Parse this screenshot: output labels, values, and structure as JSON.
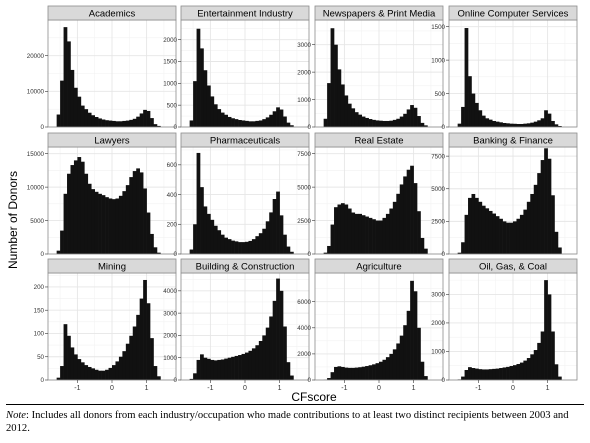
{
  "chart_data": {
    "type": "histogram-facets",
    "ylabel": "Number of Donors",
    "xlabel": "CFscore",
    "x_ticks": [
      "-1",
      "0",
      "1"
    ],
    "xlim": [
      -1.85,
      1.85
    ],
    "bins_x": [
      -1.65,
      -1.55,
      -1.45,
      -1.35,
      -1.25,
      -1.15,
      -1.05,
      -0.95,
      -0.85,
      -0.75,
      -0.65,
      -0.55,
      -0.45,
      -0.35,
      -0.25,
      -0.15,
      -0.05,
      0.05,
      0.15,
      0.25,
      0.35,
      0.45,
      0.55,
      0.65,
      0.75,
      0.85,
      0.95,
      1.05,
      1.15,
      1.25,
      1.35,
      1.45,
      1.55,
      1.65
    ],
    "bin_width": 0.1,
    "grid": true,
    "panels": [
      {
        "title": "Academics",
        "ylim": [
          0,
          30000
        ],
        "y_ticks": [
          0,
          10000,
          20000
        ],
        "y_tick_labels": [
          "0",
          "10000",
          "20000"
        ],
        "values": [
          0,
          3500,
          13000,
          28000,
          24000,
          16000,
          11000,
          8500,
          6000,
          5000,
          4000,
          3300,
          2800,
          2400,
          2100,
          1900,
          1800,
          1700,
          1600,
          1600,
          1700,
          1800,
          2000,
          2300,
          2900,
          3800,
          4800,
          4500,
          2500,
          800,
          300,
          0,
          0,
          0
        ]
      },
      {
        "title": "Entertainment Industry",
        "ylim": [
          0,
          2450
        ],
        "y_ticks": [
          0,
          500,
          1000,
          1500,
          2000
        ],
        "y_tick_labels": [
          "0",
          "500",
          "1000",
          "1500",
          "2000"
        ],
        "values": [
          0,
          150,
          1050,
          2250,
          1800,
          1300,
          950,
          700,
          520,
          410,
          330,
          280,
          230,
          200,
          180,
          160,
          150,
          140,
          130,
          130,
          140,
          150,
          180,
          220,
          280,
          360,
          450,
          400,
          240,
          100,
          40,
          0,
          0,
          0
        ]
      },
      {
        "title": "Newspapers & Print Media",
        "ylim": [
          0,
          3900
        ],
        "y_ticks": [
          0,
          1000,
          2000,
          3000
        ],
        "y_tick_labels": [
          "0",
          "1000",
          "2000",
          "3000"
        ],
        "values": [
          0,
          300,
          1600,
          3600,
          3000,
          2100,
          1550,
          1150,
          850,
          680,
          540,
          450,
          380,
          330,
          290,
          260,
          240,
          230,
          220,
          220,
          230,
          260,
          300,
          380,
          480,
          640,
          800,
          700,
          400,
          150,
          60,
          0,
          0,
          0
        ]
      },
      {
        "title": "Online Computer Services",
        "ylim": [
          0,
          1600
        ],
        "y_ticks": [
          0,
          500,
          1000,
          1500
        ],
        "y_tick_labels": [
          "0",
          "500",
          "1000",
          "1500"
        ],
        "values": [
          0,
          50,
          300,
          1480,
          760,
          500,
          360,
          250,
          170,
          130,
          110,
          90,
          80,
          70,
          60,
          55,
          50,
          48,
          45,
          45,
          50,
          55,
          65,
          80,
          100,
          130,
          250,
          200,
          90,
          40,
          15,
          0,
          0,
          0
        ]
      },
      {
        "title": "Lawyers",
        "ylim": [
          0,
          16000
        ],
        "y_ticks": [
          0,
          5000,
          10000,
          15000
        ],
        "y_tick_labels": [
          "0",
          "5000",
          "10000",
          "15000"
        ],
        "values": [
          0,
          500,
          3500,
          9000,
          12000,
          13300,
          14000,
          14500,
          13800,
          12000,
          10500,
          9700,
          9300,
          9000,
          8800,
          8500,
          8300,
          8200,
          8300,
          8700,
          9400,
          10300,
          11500,
          12400,
          12800,
          12200,
          9800,
          6200,
          3000,
          1000,
          200,
          0,
          0,
          0
        ]
      },
      {
        "title": "Pharmaceuticals",
        "ylim": [
          0,
          720
        ],
        "y_ticks": [
          0,
          200,
          400,
          600
        ],
        "y_tick_labels": [
          "0",
          "200",
          "400",
          "600"
        ],
        "values": [
          0,
          30,
          200,
          680,
          450,
          320,
          270,
          230,
          190,
          160,
          130,
          110,
          100,
          90,
          85,
          80,
          80,
          82,
          88,
          100,
          120,
          140,
          170,
          220,
          280,
          370,
          420,
          260,
          130,
          50,
          15,
          0,
          0,
          0
        ]
      },
      {
        "title": "Real Estate",
        "ylim": [
          0,
          8000
        ],
        "y_ticks": [
          0,
          2500,
          5000,
          7500
        ],
        "y_tick_labels": [
          "0",
          "2500",
          "5000",
          "7500"
        ],
        "values": [
          0,
          100,
          600,
          2200,
          3500,
          3700,
          3800,
          3700,
          3400,
          3100,
          3000,
          3000,
          2900,
          2800,
          2700,
          2600,
          2500,
          2500,
          2700,
          3000,
          3400,
          3900,
          4500,
          5200,
          5800,
          6300,
          6600,
          5300,
          3200,
          1200,
          400,
          0,
          0,
          0
        ]
      },
      {
        "title": "Banking & Finance",
        "ylim": [
          0,
          8200
        ],
        "y_ticks": [
          0,
          2500,
          5000,
          7500
        ],
        "y_tick_labels": [
          "0",
          "2500",
          "5000",
          "7500"
        ],
        "values": [
          0,
          100,
          900,
          3000,
          4300,
          4600,
          4300,
          4000,
          3700,
          3500,
          3300,
          3100,
          2900,
          2700,
          2500,
          2400,
          2400,
          2500,
          2700,
          3000,
          3400,
          4000,
          4600,
          5300,
          6200,
          7200,
          8100,
          7300,
          4500,
          1700,
          500,
          0,
          0,
          0
        ]
      },
      {
        "title": "Mining",
        "ylim": [
          0,
          230
        ],
        "y_ticks": [
          0,
          50,
          100,
          150,
          200
        ],
        "y_tick_labels": [
          "0",
          "50",
          "100",
          "150",
          "200"
        ],
        "values": [
          0,
          5,
          30,
          120,
          95,
          70,
          55,
          45,
          38,
          32,
          28,
          25,
          22,
          20,
          20,
          22,
          26,
          32,
          40,
          50,
          62,
          78,
          95,
          115,
          140,
          175,
          215,
          165,
          90,
          30,
          8,
          0,
          0,
          0
        ]
      },
      {
        "title": "Building & Construction",
        "ylim": [
          0,
          4800
        ],
        "y_ticks": [
          0,
          1000,
          2000,
          3000,
          4000
        ],
        "y_tick_labels": [
          "0",
          "1000",
          "2000",
          "3000",
          "4000"
        ],
        "values": [
          0,
          50,
          300,
          900,
          1150,
          1000,
          950,
          900,
          880,
          900,
          920,
          960,
          1000,
          1040,
          1080,
          1120,
          1170,
          1230,
          1310,
          1420,
          1560,
          1750,
          2000,
          2350,
          2850,
          3550,
          4550,
          4000,
          2400,
          800,
          200,
          0,
          0,
          0
        ]
      },
      {
        "title": "Agriculture",
        "ylim": [
          0,
          8200
        ],
        "y_ticks": [
          0,
          2000,
          4000,
          6000
        ],
        "y_tick_labels": [
          "0",
          "2000",
          "4000",
          "6000"
        ],
        "values": [
          0,
          20,
          150,
          600,
          1000,
          1050,
          1000,
          950,
          930,
          930,
          950,
          980,
          1020,
          1070,
          1130,
          1200,
          1290,
          1400,
          1550,
          1750,
          2000,
          2350,
          2800,
          3400,
          4200,
          5300,
          7600,
          6800,
          4000,
          1400,
          300,
          0,
          0,
          0
        ]
      },
      {
        "title": "Oil, Gas, & Coal",
        "ylim": [
          0,
          3750
        ],
        "y_ticks": [
          0,
          1000,
          2000,
          3000
        ],
        "y_tick_labels": [
          "0",
          "1000",
          "2000",
          "3000"
        ],
        "values": [
          0,
          20,
          120,
          350,
          450,
          420,
          400,
          380,
          370,
          370,
          380,
          390,
          400,
          420,
          440,
          460,
          490,
          520,
          560,
          610,
          680,
          770,
          900,
          1050,
          1300,
          1700,
          3500,
          3000,
          1700,
          550,
          120,
          0,
          0,
          0
        ]
      }
    ]
  },
  "note": {
    "label": "Note",
    "text": ": Includes all donors from each industry/occupation who made contributions to at least two distinct recipients between 2003 and 2012."
  },
  "colors": {
    "bar": "#111111",
    "panel_bg": "#ffffff",
    "strip_bg": "#d9d9d9",
    "grid_major": "#e6e6e6",
    "grid_minor": "#f2f2f2",
    "panel_border": "#8c8c8c",
    "tick_text": "#333333"
  }
}
